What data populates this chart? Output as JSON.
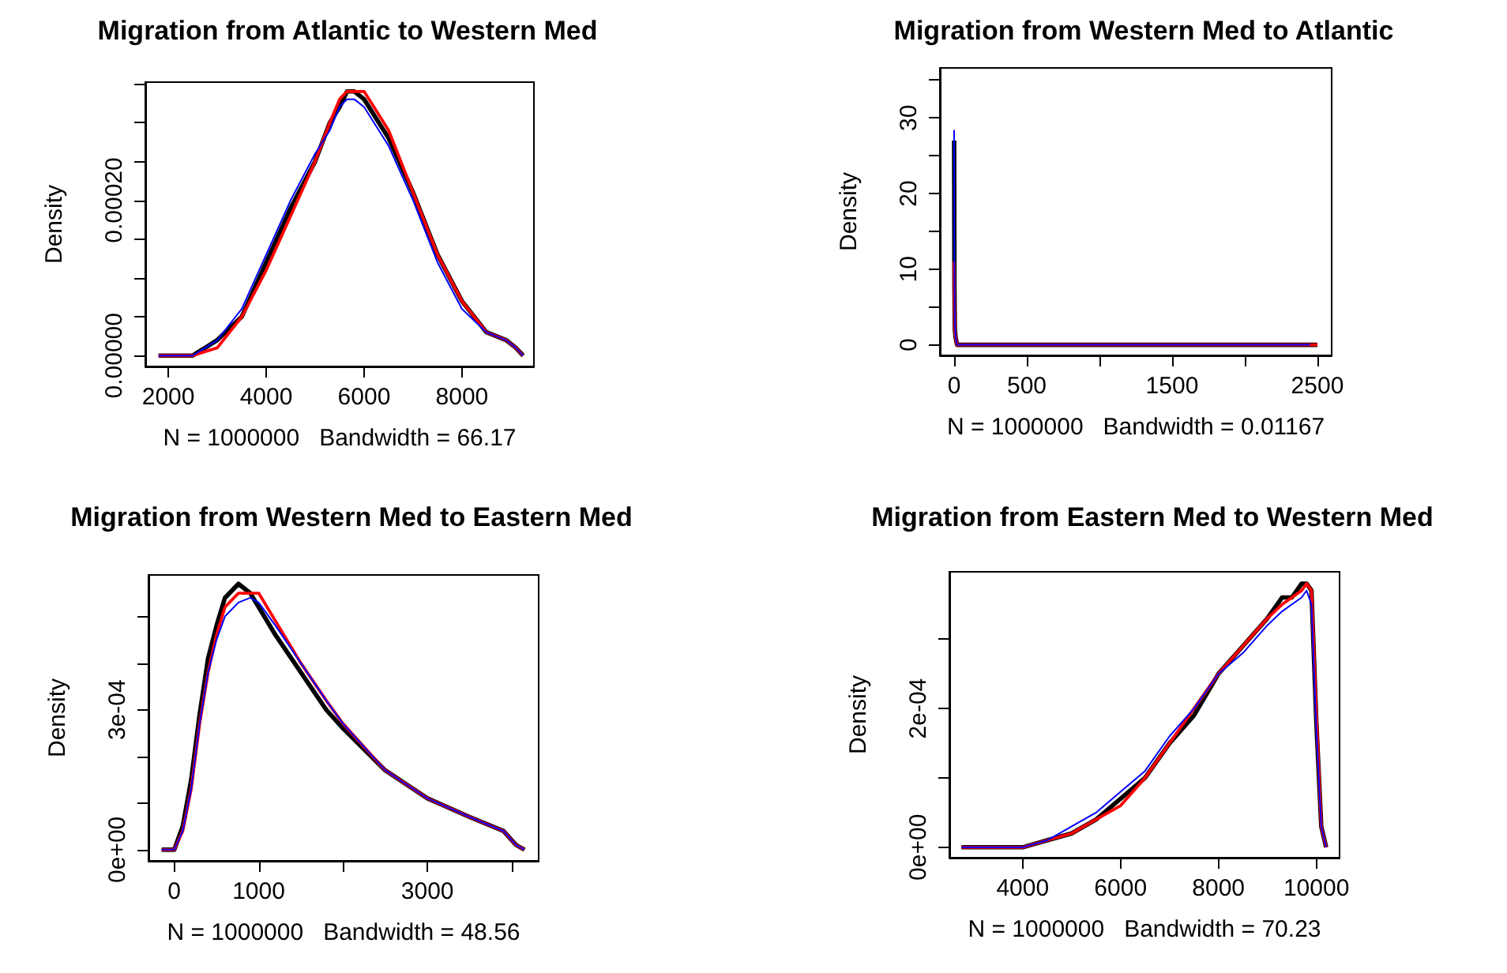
{
  "chart_data": [
    {
      "type": "line",
      "title": "Migration from Atlantic to Western Med",
      "xlabel": "N = 1000000   Bandwidth = 66.17",
      "ylabel": "Density",
      "grid": false,
      "xlim": [
        1530,
        9470
      ],
      "xticks": [
        2000,
        4000,
        6000,
        8000
      ],
      "ylim": [
        -1.4e-05,
        0.000352
      ],
      "yticks": [
        {
          "value": 0,
          "label": "0.00000"
        },
        {
          "value": 5e-05,
          "label": null
        },
        {
          "value": 0.0001,
          "label": null
        },
        {
          "value": 0.00015,
          "label": null
        },
        {
          "value": 0.0002,
          "label": "0.00020"
        },
        {
          "value": 0.00025,
          "label": null
        },
        {
          "value": 0.0003,
          "label": null
        },
        {
          "value": 0.00035,
          "label": null
        }
      ],
      "series": [
        {
          "color": "#000000",
          "x": [
            1800,
            2500,
            3000,
            3500,
            4000,
            4500,
            5000,
            5300,
            5500,
            5650,
            5800,
            6000,
            6300,
            6500,
            7000,
            7500,
            8000,
            8500,
            8900,
            9100,
            9250
          ],
          "values": [
            0,
            0,
            2e-05,
            5e-05,
            0.00012,
            0.00019,
            0.00025,
            0.0003,
            0.00032,
            0.00034,
            0.00034,
            0.00033,
            0.0003,
            0.00028,
            0.00021,
            0.00013,
            7e-05,
            3e-05,
            2e-05,
            1e-05,
            0
          ]
        },
        {
          "color": "#ff0000",
          "x": [
            1800,
            2500,
            3000,
            3500,
            4000,
            4500,
            5000,
            5300,
            5500,
            5650,
            5800,
            6000,
            6300,
            6500,
            7000,
            7500,
            8000,
            8500,
            8900,
            9100,
            9250
          ],
          "values": [
            0,
            0,
            1e-05,
            5e-05,
            0.00011,
            0.00018,
            0.00025,
            0.0003,
            0.00033,
            0.00034,
            0.00034,
            0.00034,
            0.00031,
            0.00029,
            0.00021,
            0.00013,
            7e-05,
            3e-05,
            2e-05,
            1e-05,
            0
          ]
        },
        {
          "color": "#0000ff",
          "x": [
            1800,
            2500,
            3000,
            3500,
            4000,
            4500,
            5000,
            5300,
            5500,
            5650,
            5800,
            6000,
            6300,
            6500,
            7000,
            7500,
            8000,
            8500,
            8900,
            9100,
            9250
          ],
          "values": [
            0,
            0,
            2e-05,
            6e-05,
            0.00013,
            0.0002,
            0.00026,
            0.00029,
            0.00032,
            0.00033,
            0.00033,
            0.00032,
            0.00029,
            0.00027,
            0.0002,
            0.00012,
            6e-05,
            3e-05,
            2e-05,
            1e-05,
            0
          ]
        }
      ]
    },
    {
      "type": "line",
      "title": "Migration from Western Med to Atlantic",
      "xlabel": "N = 1000000   Bandwidth = 0.01167",
      "ylabel": "Density",
      "grid": false,
      "xlim": [
        -98,
        2598
      ],
      "xticks": [
        0,
        500,
        {
          "value": 1000,
          "label": null
        },
        1500,
        {
          "value": 2000,
          "label": null
        },
        2500
      ],
      "ylim": [
        -1.4,
        36.6
      ],
      "yticks": [
        0,
        {
          "value": 5,
          "label": null
        },
        10,
        {
          "value": 15,
          "label": null
        },
        20,
        {
          "value": 25,
          "label": null
        },
        30,
        {
          "value": 35,
          "label": null
        }
      ],
      "series": [
        {
          "color": "#000000",
          "x": [
            0,
            2,
            5,
            10,
            20,
            50,
            100,
            500,
            1000,
            1500,
            2000,
            2500
          ],
          "values": [
            27,
            8,
            2,
            1,
            0,
            0,
            0,
            0,
            0,
            0,
            0,
            0
          ]
        },
        {
          "color": "#ff0000",
          "x": [
            0,
            2,
            5,
            10,
            20,
            50,
            100,
            500,
            1000,
            1500,
            2000,
            2500
          ],
          "values": [
            11,
            6,
            2,
            1,
            0,
            0,
            0,
            0,
            0,
            0,
            0,
            0
          ]
        },
        {
          "color": "#0000ff",
          "x": [
            0,
            2,
            5,
            10,
            20,
            50,
            100,
            500,
            1000,
            1500,
            2000,
            2450
          ],
          "values": [
            28.4,
            9,
            3,
            1,
            0,
            0,
            0,
            0,
            0,
            0,
            0,
            0
          ]
        }
      ]
    },
    {
      "type": "line",
      "title": "Migration from Western Med to Eastern Med",
      "xlabel": "N = 1000000   Bandwidth = 48.56",
      "ylabel": "Density",
      "grid": false,
      "xlim": [
        -306,
        4318
      ],
      "xticks": [
        0,
        1000,
        {
          "value": 2000,
          "label": null
        },
        3000,
        {
          "value": 4000,
          "label": null
        }
      ],
      "ylim": [
        -2.4e-05,
        0.000589
      ],
      "yticks": [
        {
          "value": 0,
          "label": "0e+00"
        },
        {
          "value": 0.0001,
          "label": null
        },
        {
          "value": 0.0002,
          "label": null
        },
        {
          "value": 0.0003,
          "label": "3e-04"
        },
        {
          "value": 0.0004,
          "label": null
        },
        {
          "value": 0.0005,
          "label": null
        }
      ],
      "series": [
        {
          "color": "#000000",
          "x": [
            -150,
            0,
            100,
            200,
            300,
            400,
            500,
            600,
            760,
            900,
            1000,
            1200,
            1500,
            1800,
            2000,
            2500,
            3000,
            3500,
            3900,
            4050,
            4150
          ],
          "values": [
            0,
            0,
            5e-05,
            0.00015,
            0.00029,
            0.00041,
            0.00048,
            0.00054,
            0.00057,
            0.00055,
            0.00052,
            0.00046,
            0.00038,
            0.0003,
            0.00026,
            0.00017,
            0.00011,
            7e-05,
            4e-05,
            1e-05,
            0
          ]
        },
        {
          "color": "#ff0000",
          "x": [
            -150,
            0,
            100,
            200,
            300,
            400,
            500,
            600,
            760,
            900,
            1000,
            1200,
            1500,
            1800,
            2000,
            2500,
            3000,
            3500,
            3900,
            4050,
            4150
          ],
          "values": [
            0,
            0,
            4e-05,
            0.00013,
            0.00027,
            0.00038,
            0.00046,
            0.00052,
            0.00055,
            0.00055,
            0.00055,
            0.00049,
            0.0004,
            0.00032,
            0.00027,
            0.00017,
            0.00011,
            7e-05,
            4e-05,
            1e-05,
            0
          ]
        },
        {
          "color": "#0000ff",
          "x": [
            -150,
            0,
            100,
            200,
            300,
            400,
            500,
            600,
            760,
            900,
            1000,
            1200,
            1500,
            1800,
            2000,
            2500,
            3000,
            3500,
            3900,
            4050,
            4150
          ],
          "values": [
            0,
            0,
            4e-05,
            0.00013,
            0.00027,
            0.00038,
            0.00045,
            0.0005,
            0.00053,
            0.00054,
            0.00053,
            0.00048,
            0.0004,
            0.00032,
            0.00027,
            0.00017,
            0.00011,
            7e-05,
            4e-05,
            1e-05,
            0
          ]
        }
      ]
    },
    {
      "type": "line",
      "title": "Migration from Eastern Med to Western Med",
      "xlabel": "N = 1000000   Bandwidth = 70.23",
      "ylabel": "Density",
      "grid": false,
      "xlim": [
        2503,
        10474
      ],
      "xticks": [
        4000,
        6000,
        8000,
        10000
      ],
      "ylim": [
        -1.5e-05,
        0.000397
      ],
      "yticks": [
        {
          "value": 0,
          "label": "0e+00"
        },
        {
          "value": 0.0001,
          "label": null
        },
        {
          "value": 0.0002,
          "label": "2e-04"
        },
        {
          "value": 0.0003,
          "label": null
        }
      ],
      "series": [
        {
          "color": "#000000",
          "x": [
            2750,
            3500,
            4000,
            4500,
            5000,
            5500,
            6000,
            6500,
            7000,
            7500,
            8000,
            8500,
            9000,
            9300,
            9500,
            9700,
            9800,
            9900,
            10000,
            10100,
            10200
          ],
          "values": [
            0,
            0,
            0,
            1e-05,
            2e-05,
            4e-05,
            7e-05,
            0.0001,
            0.00015,
            0.00019,
            0.00025,
            0.00029,
            0.00033,
            0.00036,
            0.00036,
            0.00038,
            0.00038,
            0.00037,
            0.00018,
            3e-05,
            0
          ]
        },
        {
          "color": "#ff0000",
          "x": [
            2750,
            3500,
            4000,
            4500,
            5000,
            5500,
            6000,
            6500,
            7000,
            7500,
            8000,
            8500,
            9000,
            9300,
            9500,
            9700,
            9800,
            9900,
            10000,
            10100,
            10200
          ],
          "values": [
            0,
            0,
            0,
            1e-05,
            2e-05,
            4e-05,
            6e-05,
            0.0001,
            0.00015,
            0.0002,
            0.00025,
            0.00029,
            0.00033,
            0.00035,
            0.00036,
            0.00037,
            0.00038,
            0.00037,
            0.00019,
            3e-05,
            0
          ]
        },
        {
          "color": "#0000ff",
          "x": [
            2750,
            3500,
            4000,
            4500,
            5000,
            5500,
            6000,
            6500,
            7000,
            7500,
            8000,
            8500,
            9000,
            9300,
            9500,
            9700,
            9800,
            9900,
            10000,
            10100,
            10200
          ],
          "values": [
            0,
            0,
            0,
            1e-05,
            3e-05,
            5e-05,
            8e-05,
            0.00011,
            0.00016,
            0.0002,
            0.00025,
            0.00028,
            0.00032,
            0.00034,
            0.00035,
            0.00036,
            0.00037,
            0.00035,
            0.00017,
            3e-05,
            0
          ]
        }
      ]
    }
  ]
}
